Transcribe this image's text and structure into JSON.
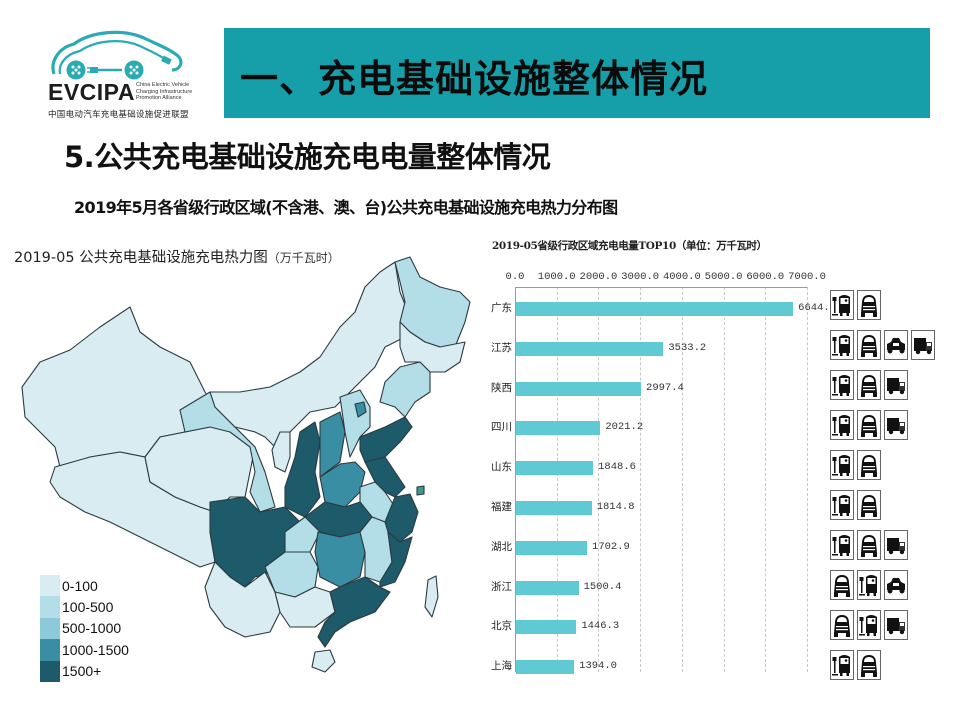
{
  "logo": {
    "brand": "EVCIPA",
    "brand_sub": "China Electric Vehicle Charging Infrastructure Promotion Alliance",
    "brand_cn": "中国电动汽车充电基础设施促进联盟",
    "color": "#2aaab3"
  },
  "header": {
    "title": "一、充电基础设施整体情况",
    "bar_color": "#169fa9"
  },
  "section_title": "5.公共充电基础设施充电电量整体情况",
  "chart_caption": "2019年5月各省级行政区域(不含港、澳、台)公共充电基础设施充电热力分布图",
  "map": {
    "title": "2019-05 公共充电基础设施充电热力图",
    "unit": "（万千瓦时）",
    "legend": [
      {
        "label": "0-100",
        "color": "#d9ecf1"
      },
      {
        "label": "100-500",
        "color": "#b3dde7"
      },
      {
        "label": "500-1000",
        "color": "#8dcad9"
      },
      {
        "label": "1000-1500",
        "color": "#3a8ea3"
      },
      {
        "label": "1500+",
        "color": "#1d5b6b"
      }
    ]
  },
  "chart_data": {
    "type": "bar",
    "orientation": "horizontal",
    "title": "2019-05省级行政区域充电电量TOP10（单位：万千瓦时）",
    "xlabel": "",
    "ylabel": "",
    "xlim": [
      0,
      7000
    ],
    "ticks": [
      "0.0",
      "1000.0",
      "2000.0",
      "3000.0",
      "4000.0",
      "5000.0",
      "6000.0",
      "7000.0"
    ],
    "grid": true,
    "categories": [
      "广东",
      "江苏",
      "陕西",
      "四川",
      "山东",
      "福建",
      "湖北",
      "浙江",
      "北京",
      "上海"
    ],
    "values": [
      6644.4,
      3533.2,
      2997.4,
      2021.2,
      1848.6,
      1814.8,
      1702.9,
      1500.4,
      1446.3,
      1394.0
    ],
    "value_labels": [
      "6644.4",
      "3533.2",
      "2997.4",
      "2021.2",
      "1848.6",
      "1814.8",
      "1702.9",
      "1500.4",
      "1446.3",
      "1394.0"
    ],
    "bar_color": "#5fc9d4"
  },
  "vehicle_icons": [
    [
      "bus",
      "car"
    ],
    [
      "bus",
      "car",
      "taxi",
      "truck"
    ],
    [
      "bus",
      "car",
      "truck"
    ],
    [
      "bus",
      "car",
      "truck"
    ],
    [
      "bus",
      "car"
    ],
    [
      "bus",
      "car"
    ],
    [
      "bus",
      "car",
      "truck"
    ],
    [
      "car",
      "bus",
      "taxi"
    ],
    [
      "car",
      "bus",
      "truck"
    ],
    [
      "bus",
      "car"
    ]
  ]
}
